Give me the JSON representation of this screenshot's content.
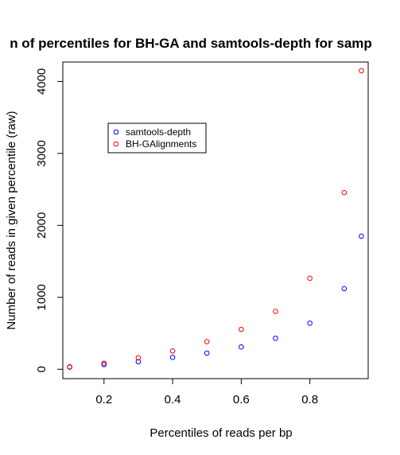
{
  "chart_data": {
    "type": "scatter",
    "title": "n of percentiles for BH-GA and samtools-depth for samp",
    "xlabel": "Percentiles of reads per bp",
    "ylabel": "Number of reads in given percentile (raw)",
    "xlim": [
      0.08,
      0.97
    ],
    "ylim": [
      -130,
      4270
    ],
    "x_ticks": [
      0.2,
      0.4,
      0.6,
      0.8
    ],
    "x_tick_labels": [
      "0.2",
      "0.4",
      "0.6",
      "0.8"
    ],
    "y_ticks": [
      0,
      1000,
      2000,
      3000,
      4000
    ],
    "y_tick_labels": [
      "0",
      "1000",
      "2000",
      "3000",
      "4000"
    ],
    "legend_position": "top-left",
    "grid": false,
    "series": [
      {
        "name": "samtools-depth",
        "color": "#0000ff",
        "x": [
          0.1,
          0.2,
          0.3,
          0.4,
          0.5,
          0.6,
          0.7,
          0.8,
          0.9,
          0.95
        ],
        "y": [
          30,
          65,
          105,
          165,
          225,
          310,
          430,
          640,
          1120,
          1850
        ]
      },
      {
        "name": "BH-GAlignments",
        "color": "#ff0000",
        "x": [
          0.1,
          0.2,
          0.3,
          0.4,
          0.5,
          0.6,
          0.7,
          0.8,
          0.9,
          0.95
        ],
        "y": [
          35,
          85,
          160,
          255,
          385,
          555,
          805,
          1265,
          2455,
          4150
        ]
      }
    ]
  }
}
